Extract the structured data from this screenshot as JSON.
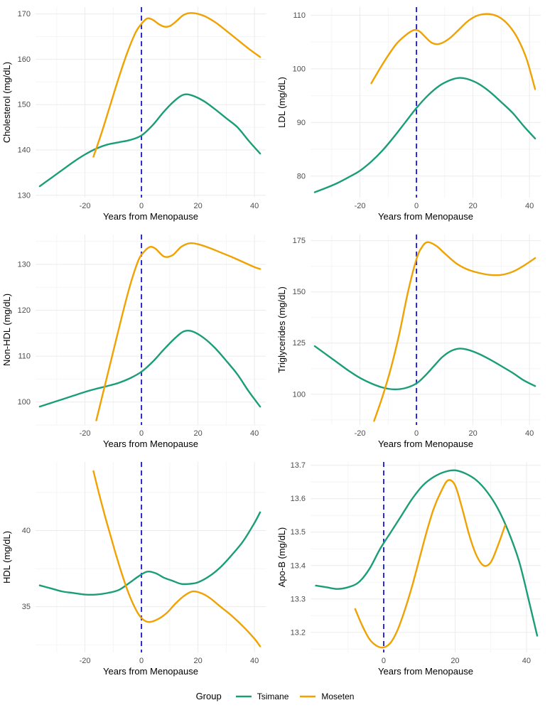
{
  "figure": {
    "legend": {
      "title": "Group",
      "items": [
        {
          "label": "Tsimane",
          "color_key": "tsimane"
        },
        {
          "label": "Moseten",
          "color_key": "moseten"
        }
      ]
    }
  },
  "colors": {
    "tsimane": "#1b9e77",
    "moseten": "#f0a202",
    "menopause_line": "#2222cc",
    "grid_major": "#ebebeb",
    "grid_minor": "#f5f5f5",
    "tick_text": "#4d4d4d",
    "axis_title_text": "#000000"
  },
  "chart_data": [
    {
      "id": "cholesterol",
      "type": "line",
      "ylabel": "Cholesterol (mg/dL)",
      "xlabel": "Years from Menopause",
      "xlim": [
        -37.5,
        44
      ],
      "ylim": [
        129.5,
        171.5
      ],
      "xticks": [
        -20,
        0,
        20,
        40
      ],
      "yticks": [
        130,
        140,
        150,
        160,
        170
      ],
      "vline_x": 0,
      "series": [
        {
          "name": "Tsimane",
          "color_key": "tsimane",
          "x": [
            -36,
            -32,
            -28,
            -24,
            -20,
            -16,
            -12,
            -8,
            -4,
            0,
            4,
            8,
            12,
            15,
            18,
            22,
            26,
            30,
            34,
            38,
            42
          ],
          "y": [
            132,
            133.8,
            135.6,
            137.4,
            139,
            140.3,
            141.2,
            141.7,
            142.2,
            143.2,
            145.5,
            148.5,
            151,
            152.2,
            152,
            150.8,
            149,
            147,
            145,
            142,
            139.2
          ]
        },
        {
          "name": "Moseten",
          "color_key": "moseten",
          "x": [
            -17,
            -14,
            -11,
            -8,
            -5,
            -2,
            0,
            2,
            4,
            6,
            8,
            10,
            12,
            15,
            18,
            22,
            26,
            30,
            34,
            38,
            42
          ],
          "y": [
            138.5,
            144,
            150,
            156,
            161.5,
            166,
            167.8,
            169,
            168.7,
            167.8,
            167.2,
            167.3,
            168.2,
            169.8,
            170.2,
            169.6,
            168.2,
            166.3,
            164.3,
            162.3,
            160.5
          ]
        }
      ]
    },
    {
      "id": "ldl",
      "type": "line",
      "ylabel": "LDL (mg/dL)",
      "xlabel": "Years from Menopause",
      "xlim": [
        -37.5,
        44
      ],
      "ylim": [
        76,
        111.5
      ],
      "xticks": [
        -20,
        0,
        20,
        40
      ],
      "yticks": [
        80,
        90,
        100,
        110
      ],
      "vline_x": 0,
      "series": [
        {
          "name": "Tsimane",
          "color_key": "tsimane",
          "x": [
            -36,
            -32,
            -28,
            -24,
            -20,
            -16,
            -12,
            -8,
            -4,
            0,
            4,
            8,
            12,
            15,
            18,
            22,
            26,
            30,
            34,
            38,
            42
          ],
          "y": [
            77,
            77.8,
            78.7,
            79.8,
            81,
            82.7,
            84.8,
            87.3,
            90,
            92.7,
            95,
            96.8,
            97.9,
            98.3,
            98.1,
            97.2,
            95.7,
            93.8,
            91.8,
            89.3,
            87
          ]
        },
        {
          "name": "Moseten",
          "color_key": "moseten",
          "x": [
            -16,
            -13,
            -10,
            -7,
            -4,
            -1,
            1,
            3,
            5,
            7,
            9,
            12,
            15,
            18,
            21,
            24,
            27,
            30,
            33,
            36,
            39,
            42
          ],
          "y": [
            97.3,
            100,
            102.5,
            104.7,
            106.2,
            107.2,
            107,
            106,
            105,
            104.6,
            104.8,
            105.8,
            107.3,
            108.8,
            109.8,
            110.2,
            110.1,
            109.4,
            107.9,
            105.5,
            101.8,
            96.2
          ]
        }
      ]
    },
    {
      "id": "non_hdl",
      "type": "line",
      "ylabel": "Non-HDL (mg/dL)",
      "xlabel": "Years from Menopause",
      "xlim": [
        -37.5,
        44
      ],
      "ylim": [
        95,
        136.5
      ],
      "xticks": [
        -20,
        0,
        20,
        40
      ],
      "yticks": [
        100,
        110,
        120,
        130
      ],
      "vline_x": 0,
      "series": [
        {
          "name": "Tsimane",
          "color_key": "tsimane",
          "x": [
            -36,
            -32,
            -28,
            -24,
            -20,
            -16,
            -12,
            -8,
            -4,
            0,
            4,
            8,
            12,
            15,
            18,
            22,
            26,
            30,
            34,
            38,
            42
          ],
          "y": [
            99,
            99.8,
            100.6,
            101.4,
            102.2,
            102.9,
            103.5,
            104.2,
            105.2,
            106.6,
            108.8,
            111.5,
            114,
            115.4,
            115.4,
            114,
            111.8,
            109,
            106,
            102.3,
            99
          ]
        },
        {
          "name": "Moseten",
          "color_key": "moseten",
          "x": [
            -16,
            -13,
            -10,
            -7,
            -4,
            -1,
            1,
            3,
            5,
            8,
            11,
            14,
            17,
            20,
            24,
            28,
            32,
            36,
            40,
            42
          ],
          "y": [
            96,
            103.5,
            111,
            118.5,
            125.5,
            131,
            132.8,
            133.8,
            133.4,
            131.7,
            132,
            133.8,
            134.6,
            134.4,
            133.6,
            132.6,
            131.6,
            130.5,
            129.4,
            129
          ]
        }
      ]
    },
    {
      "id": "triglycerides",
      "type": "line",
      "ylabel": "Triglycerides (mg/dL)",
      "xlabel": "Years from Menopause",
      "xlim": [
        -37.5,
        44
      ],
      "ylim": [
        85,
        178
      ],
      "xticks": [
        -20,
        0,
        20,
        40
      ],
      "yticks": [
        100,
        125,
        150,
        175
      ],
      "vline_x": 0,
      "series": [
        {
          "name": "Tsimane",
          "color_key": "tsimane",
          "x": [
            -36,
            -32,
            -28,
            -24,
            -20,
            -16,
            -12,
            -8,
            -4,
            0,
            3,
            6,
            9,
            12,
            15,
            18,
            22,
            26,
            30,
            34,
            38,
            42
          ],
          "y": [
            123.5,
            119.5,
            115.5,
            111.5,
            108,
            105.3,
            103.3,
            102.4,
            103,
            105.3,
            109,
            113.5,
            118,
            121,
            122.3,
            121.8,
            119.8,
            117,
            113.8,
            110.5,
            106.8,
            104
          ]
        },
        {
          "name": "Moseten",
          "color_key": "moseten",
          "x": [
            -15,
            -12,
            -9,
            -6,
            -3,
            0,
            2,
            4,
            7,
            10,
            14,
            18,
            22,
            26,
            30,
            34,
            38,
            42
          ],
          "y": [
            87,
            99,
            113,
            130,
            150,
            166,
            172,
            174.3,
            172.5,
            168.8,
            164,
            161,
            159.3,
            158.3,
            158.3,
            159.8,
            162.8,
            166.5
          ]
        }
      ]
    },
    {
      "id": "hdl",
      "type": "line",
      "ylabel": "HDL (mg/dL)",
      "xlabel": "Years from Menopause",
      "xlim": [
        -37.5,
        44
      ],
      "ylim": [
        32,
        44.5
      ],
      "xticks": [
        -20,
        0,
        20,
        40
      ],
      "yticks": [
        35,
        40
      ],
      "vline_x": 0,
      "series": [
        {
          "name": "Tsimane",
          "color_key": "tsimane",
          "x": [
            -36,
            -32,
            -28,
            -24,
            -20,
            -16,
            -12,
            -8,
            -4,
            -1,
            2,
            5,
            8,
            11,
            14,
            17,
            20,
            24,
            28,
            32,
            36,
            40,
            42
          ],
          "y": [
            36.4,
            36.2,
            36,
            35.9,
            35.8,
            35.8,
            35.9,
            36.1,
            36.6,
            37,
            37.3,
            37.2,
            36.9,
            36.7,
            36.5,
            36.5,
            36.6,
            37,
            37.6,
            38.4,
            39.3,
            40.5,
            41.2
          ]
        },
        {
          "name": "Moseten",
          "color_key": "moseten",
          "x": [
            -17,
            -15,
            -13,
            -11,
            -9,
            -7,
            -5,
            -3,
            -1,
            1,
            3,
            6,
            9,
            12,
            15,
            18,
            21,
            24,
            28,
            32,
            36,
            40,
            42
          ],
          "y": [
            43.9,
            42.4,
            41,
            39.7,
            38.4,
            37.2,
            36.1,
            35.2,
            34.5,
            34.1,
            34,
            34.2,
            34.6,
            35.2,
            35.7,
            36,
            35.9,
            35.6,
            35,
            34.4,
            33.7,
            32.9,
            32.4
          ]
        }
      ]
    },
    {
      "id": "apo_b",
      "type": "line",
      "ylabel": "Apo-B (mg/dL)",
      "xlabel": "Years from Menopause",
      "xlim": [
        -20.5,
        44
      ],
      "ylim": [
        13.14,
        13.71
      ],
      "xticks": [
        0,
        20,
        40
      ],
      "yticks": [
        13.2,
        13.3,
        13.4,
        13.5,
        13.6,
        13.7
      ],
      "vline_x": 0,
      "series": [
        {
          "name": "Tsimane",
          "color_key": "tsimane",
          "x": [
            -19,
            -16,
            -13,
            -10,
            -7,
            -4,
            -1,
            2,
            5,
            8,
            11,
            14,
            17,
            20,
            23,
            26,
            29,
            32,
            35,
            38,
            41,
            43
          ],
          "y": [
            13.34,
            13.335,
            13.33,
            13.335,
            13.35,
            13.39,
            13.45,
            13.5,
            13.55,
            13.6,
            13.64,
            13.665,
            13.68,
            13.685,
            13.675,
            13.655,
            13.62,
            13.57,
            13.5,
            13.41,
            13.28,
            13.19
          ]
        },
        {
          "name": "Moseten",
          "color_key": "moseten",
          "x": [
            -8,
            -6,
            -4,
            -2,
            0,
            2,
            4,
            6,
            8,
            10,
            12,
            14,
            16,
            18,
            20,
            22,
            24,
            26,
            28,
            30,
            32,
            34
          ],
          "y": [
            13.27,
            13.22,
            13.18,
            13.16,
            13.155,
            13.17,
            13.21,
            13.27,
            13.34,
            13.42,
            13.5,
            13.57,
            13.62,
            13.655,
            13.64,
            13.57,
            13.49,
            13.43,
            13.4,
            13.41,
            13.46,
            13.52
          ]
        }
      ]
    }
  ]
}
